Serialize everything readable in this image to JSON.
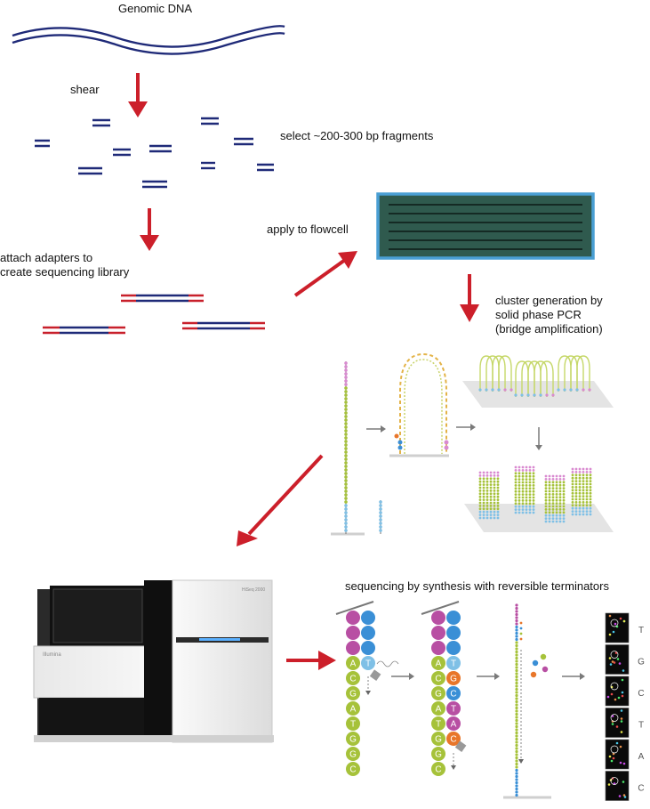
{
  "labels": {
    "genomic_dna": "Genomic DNA",
    "shear": "shear",
    "select_fragments": "select ~200-300 bp fragments",
    "attach_adapters": [
      "attach adapters to",
      "create sequencing library"
    ],
    "apply_flowcell": "apply to flowcell",
    "cluster_generation": [
      "cluster generation by",
      "solid phase PCR",
      "(bridge amplification)"
    ],
    "sbs": "sequencing by synthesis with reversible terminators"
  },
  "machine": {
    "brand_left": "Illumina",
    "brand_right": "HiSeq 2000"
  },
  "strand1": {
    "top_labels": [],
    "labels": [
      "A",
      "C",
      "G",
      "A",
      "T",
      "G",
      "G",
      "C"
    ],
    "incoming": "T"
  },
  "strand2": {
    "labels": [
      "A",
      "C",
      "G",
      "A",
      "T",
      "G",
      "G",
      "C"
    ],
    "paired": [
      "T",
      "G",
      "C",
      "T",
      "A",
      "C"
    ]
  },
  "base_calls": [
    "T",
    "G",
    "C",
    "T",
    "A",
    "C"
  ],
  "colors": {
    "dna": "#1f2a78",
    "adapter": "#c8202b",
    "arrow": "#cc1f2a",
    "gray_arrow": "#7a7a7a",
    "flowcell_border": "#4a9fd4",
    "flowcell_fill": "#2f5a4e",
    "green": "#a6c23a",
    "magenta": "#b84fa3",
    "blue": "#3a8fd6",
    "orange": "#e8762a",
    "pink": "#d98ad0",
    "light_blue": "#7fc0e6"
  }
}
